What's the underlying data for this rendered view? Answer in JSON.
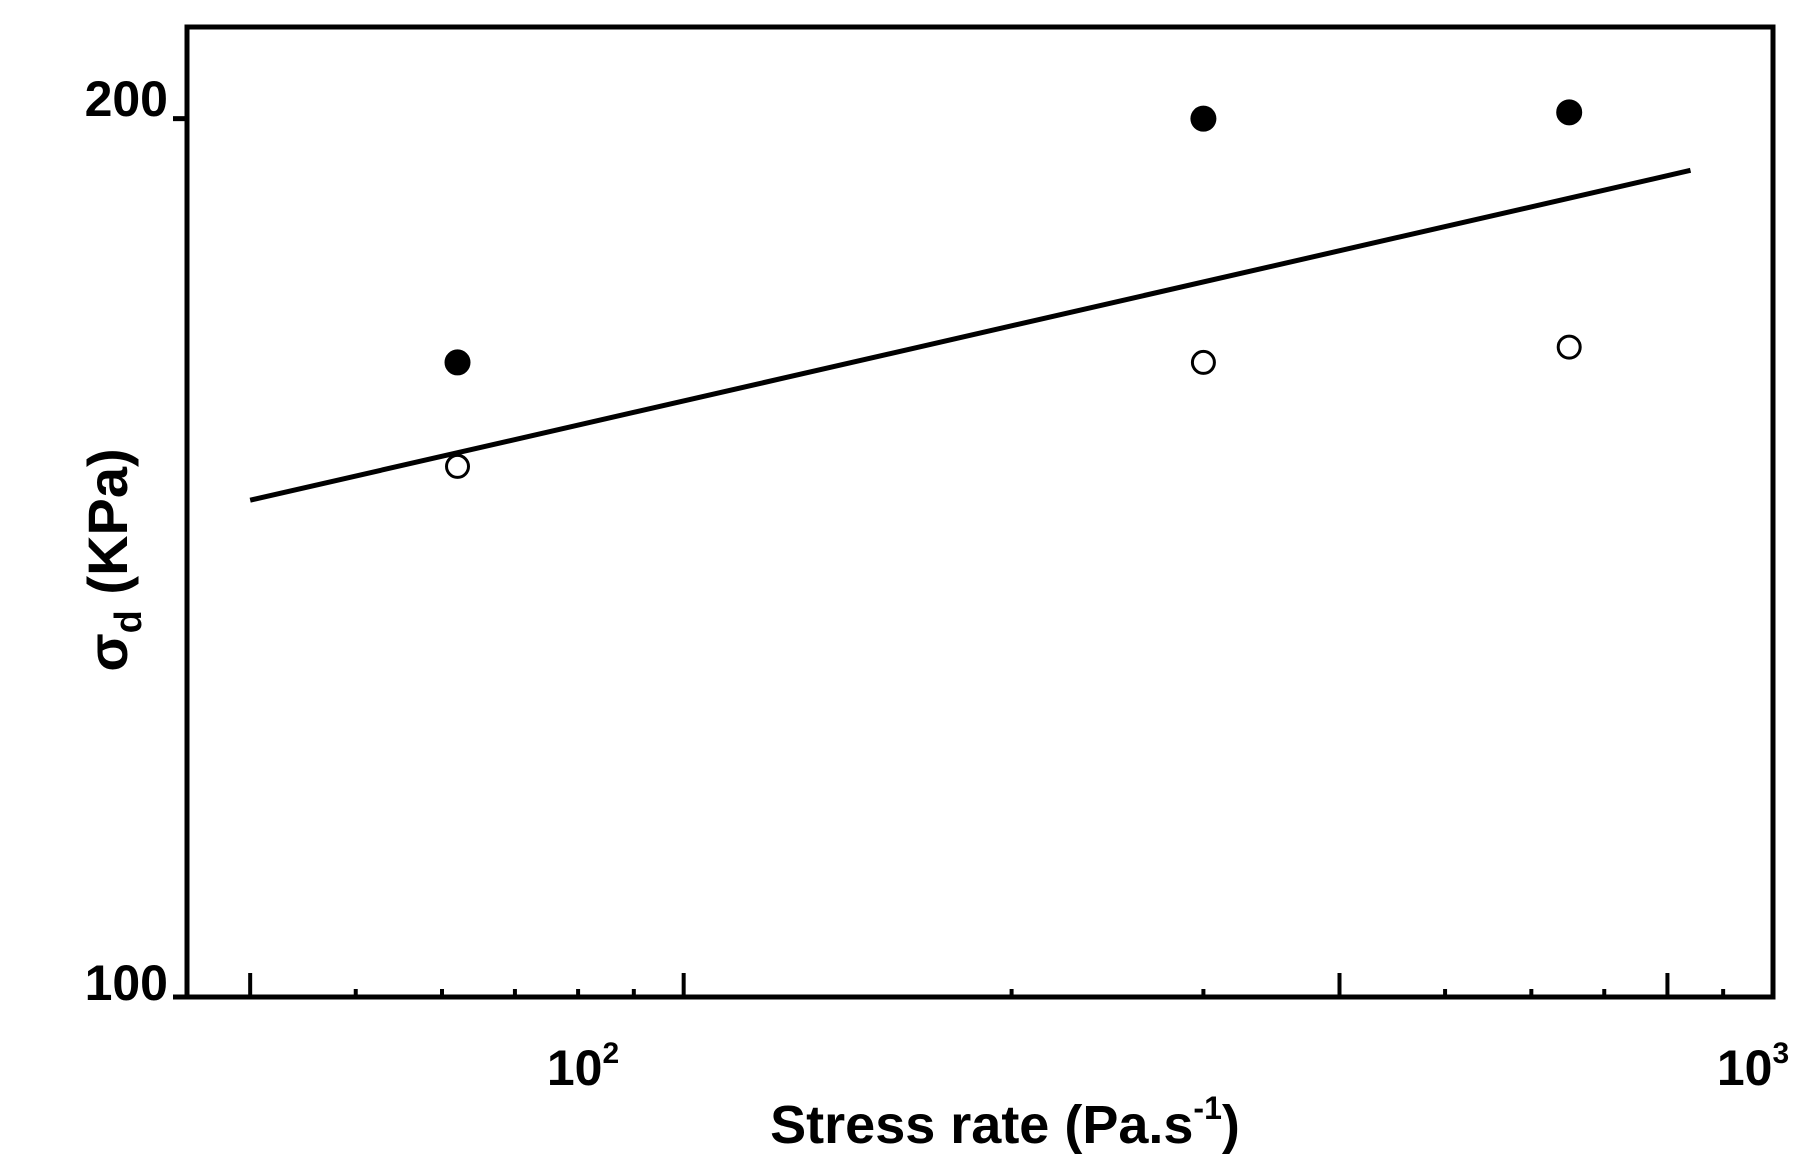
{
  "chart_data": {
    "type": "scatter",
    "title": "",
    "x_scale": "log",
    "y_scale": "log",
    "xlim": [
      35,
      1000
    ],
    "ylim": [
      100,
      215
    ],
    "x_ticks": [
      {
        "value": 100,
        "base": "10",
        "exp": "2"
      },
      {
        "value": 1000,
        "base": "10",
        "exp": "3"
      }
    ],
    "y_ticks": [
      {
        "value": 100,
        "label": "100"
      },
      {
        "value": 200,
        "label": "200"
      }
    ],
    "xlabel": {
      "main": "Stress rate (Pa.s",
      "sup": "-1",
      "end": ")"
    },
    "ylabel": {
      "main": "σ",
      "sub": "d",
      "end": " (KPa)"
    },
    "series": [
      {
        "marker": "filled",
        "points": [
          [
            62,
            165
          ],
          [
            300,
            200
          ],
          [
            650,
            201
          ]
        ]
      },
      {
        "marker": "open",
        "points": [
          [
            62,
            152
          ],
          [
            300,
            165
          ],
          [
            650,
            167
          ]
        ]
      },
      {
        "marker": "line",
        "points": [
          [
            40,
            148
          ],
          [
            840,
            192
          ]
        ]
      }
    ],
    "grid": false,
    "legend": "none"
  }
}
